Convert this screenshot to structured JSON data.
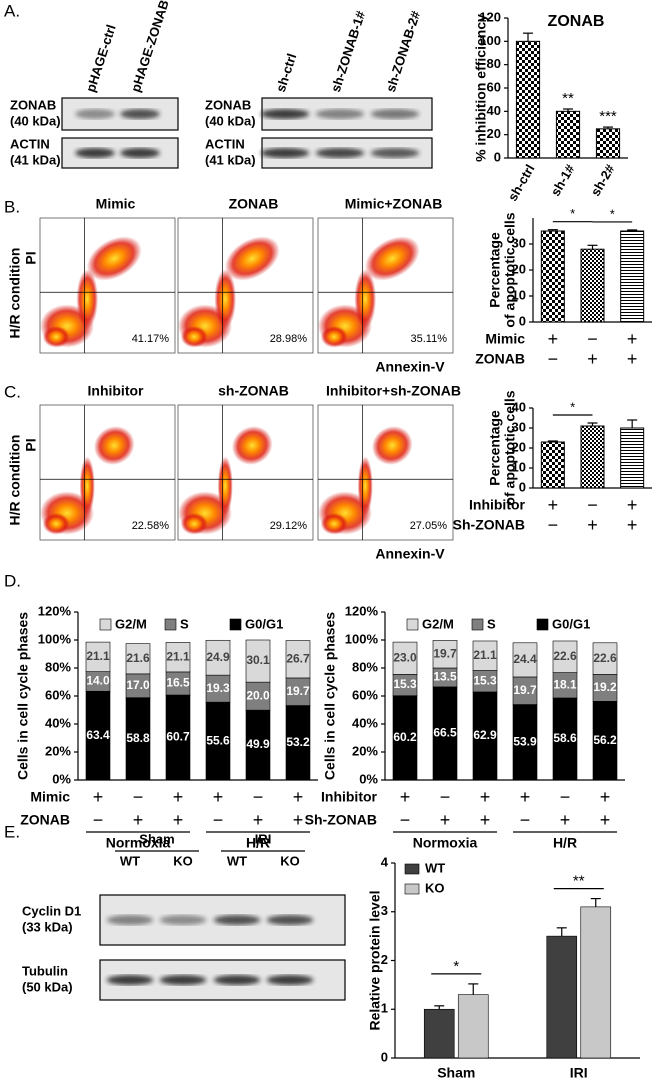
{
  "panel_labels": [
    "A.",
    "B.",
    "C.",
    "D.",
    "E."
  ],
  "blots": [
    {
      "lanes": [
        "pHAGE-ctrl",
        "pHAGE-ZONAB"
      ],
      "rows": [
        [
          "ZONAB",
          "(40 kDa)"
        ],
        [
          "ACTIN",
          "(41 kDa)"
        ]
      ]
    },
    {
      "lanes": [
        "sh-ctrl",
        "sh-ZONAB-1#",
        "sh-ZONAB-2#"
      ],
      "rows": [
        [
          "ZONAB",
          "(40 kDa)"
        ],
        [
          "ACTIN",
          "(41 kDa)"
        ]
      ]
    },
    {
      "groups": [
        "Sham",
        "IRI"
      ],
      "lanes": [
        "WT",
        "KO",
        "WT",
        "KO"
      ],
      "rows": [
        [
          "Cyclin D1",
          "(33 kDa)"
        ],
        [
          "Tubulin",
          "(50 kDa)"
        ]
      ]
    }
  ],
  "flow": [
    {
      "condition": "H/R condition",
      "y_axis": "PI",
      "x_axis": "Annexin-V",
      "plots": [
        {
          "title": "Mimic",
          "percent": "41.17%"
        },
        {
          "title": "ZONAB",
          "percent": "28.98%"
        },
        {
          "title": "Mimic+ZONAB",
          "percent": "35.11%"
        }
      ]
    },
    {
      "condition": "H/R condition",
      "y_axis": "PI",
      "x_axis": "Annexin-V",
      "plots": [
        {
          "title": "Inhibitor",
          "percent": "22.58%"
        },
        {
          "title": "sh-ZONAB",
          "percent": "29.12%"
        },
        {
          "title": "Inhibitor+sh-ZONAB",
          "percent": "27.05%"
        }
      ]
    }
  ],
  "chart_data": [
    {
      "type": "bar",
      "title": "ZONAB",
      "y_label": [
        "% inhibition efficiency"
      ],
      "categories": [
        "sh-ctrl",
        "sh-1#",
        "sh-2#"
      ],
      "values": [
        100,
        40,
        25
      ],
      "errors": [
        7,
        2,
        1.5
      ],
      "annotations": [
        null,
        "**",
        "***"
      ],
      "pattern": "checker",
      "ylim": [
        0,
        120
      ],
      "yticks": [
        0,
        20,
        40,
        60,
        80,
        100,
        120
      ]
    },
    {
      "type": "bar",
      "y_label": [
        "Percentage",
        "of apoptotic cells"
      ],
      "values": [
        35,
        28,
        35
      ],
      "errors": [
        0.5,
        1.5,
        0.4
      ],
      "patterns": [
        "checker",
        "checker-fine",
        "hlines"
      ],
      "ylim": [
        0,
        40
      ],
      "yticks": [
        0,
        10,
        20,
        30
      ],
      "conditions": [
        {
          "name": "Mimic",
          "signs": [
            "+",
            "−",
            "+"
          ]
        },
        {
          "name": "ZONAB",
          "signs": [
            "−",
            "+",
            "+"
          ]
        }
      ],
      "significance": [
        {
          "pair": [
            0,
            1
          ],
          "label": "*"
        },
        {
          "pair": [
            1,
            2
          ],
          "label": "*"
        }
      ]
    },
    {
      "type": "bar",
      "y_label": [
        "Percentage",
        "of apoptotic cells"
      ],
      "values": [
        23,
        31,
        30
      ],
      "errors": [
        0.5,
        1.5,
        4
      ],
      "patterns": [
        "checker",
        "checker-fine",
        "hlines"
      ],
      "ylim": [
        0,
        40
      ],
      "yticks": [
        0,
        10,
        20,
        30,
        40
      ],
      "conditions": [
        {
          "name": "Inhibitor",
          "signs": [
            "+",
            "−",
            "+"
          ]
        },
        {
          "name": "Sh-ZONAB",
          "signs": [
            "−",
            "+",
            "+"
          ]
        }
      ],
      "significance": [
        {
          "pair": [
            0,
            1
          ],
          "label": "*"
        }
      ]
    },
    {
      "type": "stacked_bar",
      "y_label": [
        "Cells in cell cycle phases"
      ],
      "ylim": [
        0,
        120
      ],
      "yticks": [
        {
          "value": 0,
          "label": "0%"
        },
        {
          "value": 20,
          "label": "20%"
        },
        {
          "value": 40,
          "label": "40%"
        },
        {
          "value": 60,
          "label": "60%"
        },
        {
          "value": 80,
          "label": "80%"
        },
        {
          "value": 100,
          "label": "100%"
        },
        {
          "value": 120,
          "label": "120%"
        }
      ],
      "series": [
        {
          "name": "G0/G1",
          "color": "#000000",
          "values": [
            63.4,
            58.8,
            60.7,
            55.6,
            49.9,
            53.2
          ],
          "value_labels": [
            "63.4",
            "58.8",
            "60.7",
            "55.6",
            "49.9",
            "53.2"
          ]
        },
        {
          "name": "S",
          "color": "#7f7f7f",
          "values": [
            14.0,
            17.0,
            16.5,
            19.3,
            20.0,
            19.7
          ],
          "value_labels": [
            "14.0",
            "17.0",
            "16.5",
            "19.3",
            "20.0",
            "19.7"
          ]
        },
        {
          "name": "G2/M",
          "color": "#d9d9d9",
          "values": [
            21.1,
            21.6,
            21.1,
            24.9,
            30.1,
            26.7
          ],
          "value_labels": [
            "21.1",
            "21.6",
            "21.1",
            "24.9",
            "30.1",
            "26.7"
          ]
        }
      ],
      "conditions": [
        {
          "name": "Mimic",
          "signs": [
            "+",
            "−",
            "+",
            "+",
            "−",
            "+"
          ]
        },
        {
          "name": "ZONAB",
          "signs": [
            "−",
            "+",
            "+",
            "−",
            "+",
            "+"
          ]
        }
      ],
      "groups": [
        "Normoxia",
        "H/R"
      ]
    },
    {
      "type": "stacked_bar",
      "y_label": [
        "Cells in cell cycle phases"
      ],
      "ylim": [
        0,
        120
      ],
      "yticks": [
        {
          "value": 0,
          "label": "0%"
        },
        {
          "value": 20,
          "label": "20%"
        },
        {
          "value": 40,
          "label": "40%"
        },
        {
          "value": 60,
          "label": "60%"
        },
        {
          "value": 80,
          "label": "80%"
        },
        {
          "value": 100,
          "label": "100%"
        },
        {
          "value": 120,
          "label": "120%"
        }
      ],
      "series": [
        {
          "name": "G0/G1",
          "color": "#000000",
          "values": [
            60.2,
            66.5,
            62.9,
            53.9,
            58.6,
            56.2
          ],
          "value_labels": [
            "60.2",
            "66.5",
            "62.9",
            "53.9",
            "58.6",
            "56.2"
          ]
        },
        {
          "name": "S",
          "color": "#7f7f7f",
          "values": [
            15.3,
            13.5,
            15.3,
            19.7,
            18.1,
            19.2
          ],
          "value_labels": [
            "15.3",
            "13.5",
            "15.3",
            "19.7",
            "18.1",
            "19.2"
          ]
        },
        {
          "name": "G2/M",
          "color": "#d9d9d9",
          "values": [
            23.0,
            19.7,
            21.1,
            24.4,
            22.6,
            22.6
          ],
          "value_labels": [
            "23.0",
            "19.7",
            "21.1",
            "24.4",
            "22.6",
            "22.6"
          ]
        }
      ],
      "conditions": [
        {
          "name": "Inhibitor",
          "signs": [
            "+",
            "−",
            "+",
            "+",
            "−",
            "+"
          ]
        },
        {
          "name": "Sh-ZONAB",
          "signs": [
            "−",
            "+",
            "+",
            "−",
            "+",
            "+"
          ]
        }
      ],
      "groups": [
        "Normoxia",
        "H/R"
      ]
    },
    {
      "type": "grouped_bar",
      "y_label": [
        "Relative protein level"
      ],
      "categories": [
        "Sham",
        "IRI"
      ],
      "series": [
        {
          "name": "WT",
          "color": "#404040",
          "values": [
            1.0,
            2.5
          ],
          "errors": [
            0.07,
            0.17
          ]
        },
        {
          "name": "KO",
          "color": "#c8c8c8",
          "values": [
            1.3,
            3.1
          ],
          "errors": [
            0.22,
            0.17
          ]
        }
      ],
      "significance": [
        "*",
        "**"
      ],
      "ylim": [
        0,
        4
      ],
      "yticks": [
        0,
        1,
        2,
        3,
        4
      ]
    }
  ]
}
